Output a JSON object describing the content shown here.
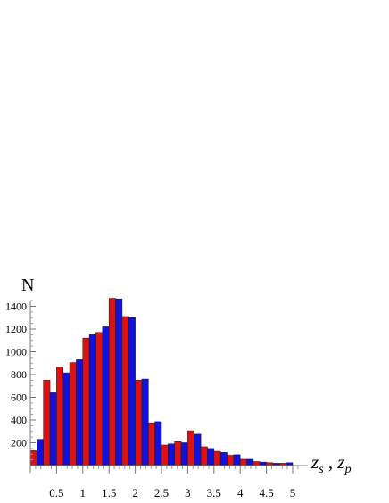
{
  "chart_data": {
    "type": "bar",
    "ylabel": "N",
    "xlabel": {
      "var1": "z",
      "sub1": "s",
      "sep": " , ",
      "var2": "z",
      "sub2": "p"
    },
    "x_ticks": [
      "0.5",
      "1",
      "1.5",
      "2",
      "2.5",
      "3",
      "3.5",
      "4",
      "4.5",
      "5"
    ],
    "y_ticks": [
      "200",
      "400",
      "600",
      "800",
      "1000",
      "1200",
      "1400"
    ],
    "xlim": [
      0,
      5.2
    ],
    "ylim": [
      0,
      1500
    ],
    "bin_width": 0.25,
    "bin_starts": [
      0,
      0.25,
      0.5,
      0.75,
      1.0,
      1.25,
      1.5,
      1.75,
      2.0,
      2.25,
      2.5,
      2.75,
      3.0,
      3.25,
      3.5,
      3.75,
      4.0,
      4.25,
      4.5,
      4.75,
      5.0
    ],
    "series": [
      {
        "color": "#dd1111",
        "values": [
          130,
          750,
          865,
          905,
          1120,
          1170,
          1470,
          1310,
          750,
          375,
          180,
          210,
          305,
          165,
          125,
          90,
          55,
          35,
          25,
          20,
          0
        ]
      },
      {
        "color": "#1111dd",
        "values": [
          230,
          640,
          815,
          930,
          1150,
          1220,
          1465,
          1300,
          760,
          385,
          190,
          200,
          275,
          150,
          115,
          95,
          55,
          30,
          20,
          25,
          0
        ]
      }
    ]
  }
}
